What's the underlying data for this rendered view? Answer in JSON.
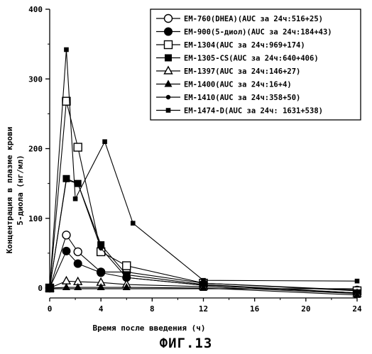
{
  "chart_data": {
    "type": "line",
    "xlabel": "Время после введения (ч)",
    "ylabel_lines": [
      "Концентрация в плазме крови",
      "5-диола (нг/мл)"
    ],
    "xlim": [
      0,
      24
    ],
    "ylim": [
      0,
      400
    ],
    "x_ticks": [
      0,
      4,
      8,
      12,
      16,
      20,
      24
    ],
    "y_ticks": [
      0,
      100,
      200,
      300,
      400
    ],
    "grid": false,
    "legend_position": "top-right",
    "caption": "ФИГ.13",
    "series": [
      {
        "name": "EM-760(DHEA)(AUC за 24ч:516+25)",
        "marker": "circle-open",
        "x": [
          0,
          1.3,
          2.2,
          4,
          6,
          12,
          24
        ],
        "y": [
          0,
          76,
          52,
          23,
          23,
          7,
          -3
        ]
      },
      {
        "name": "EM-900(5-диол)(AUC за 24ч:184+43)",
        "marker": "circle-filled",
        "x": [
          0,
          1.3,
          2.2,
          4,
          6,
          12,
          24
        ],
        "y": [
          0,
          53,
          35,
          22,
          15,
          4,
          -7
        ]
      },
      {
        "name": "EM-1304(AUC за 24ч:969+174)",
        "marker": "square-open",
        "x": [
          0,
          1.3,
          2.2,
          4,
          6,
          12,
          24
        ],
        "y": [
          0,
          268,
          202,
          52,
          32,
          7,
          -4
        ]
      },
      {
        "name": "EM-1305-CS(AUC за 24ч:640+406)",
        "marker": "square-filled",
        "x": [
          0,
          1.3,
          2.2,
          4,
          6,
          12,
          24
        ],
        "y": [
          0,
          157,
          150,
          62,
          19,
          5,
          -7
        ]
      },
      {
        "name": "EM-1397(AUC за 24ч:146+27)",
        "marker": "triangle-open",
        "x": [
          0,
          1.3,
          2.2,
          4,
          6,
          12,
          24
        ],
        "y": [
          0,
          10,
          9,
          8,
          5,
          2,
          -8
        ]
      },
      {
        "name": "EM-1400(AUC за 24ч:16+4)",
        "marker": "triangle-filled",
        "x": [
          0,
          1.3,
          2.2,
          4,
          6,
          12,
          24
        ],
        "y": [
          0,
          1,
          1,
          1,
          1,
          0,
          -10
        ]
      },
      {
        "name": "EM-1410(AUC за 24ч:358+50)",
        "marker": "dot-small",
        "x": [
          0,
          1.3,
          2.2,
          4,
          6,
          12,
          24
        ],
        "y": [
          0,
          155,
          150,
          57,
          15,
          4,
          -7
        ]
      },
      {
        "name": "EM-1474-D(AUC за 24ч: 1631+538)",
        "marker": "square-small",
        "x": [
          0,
          1.3,
          2,
          4.3,
          6.5,
          12,
          24
        ],
        "y": [
          0,
          342,
          128,
          210,
          93,
          11,
          10
        ]
      }
    ]
  }
}
